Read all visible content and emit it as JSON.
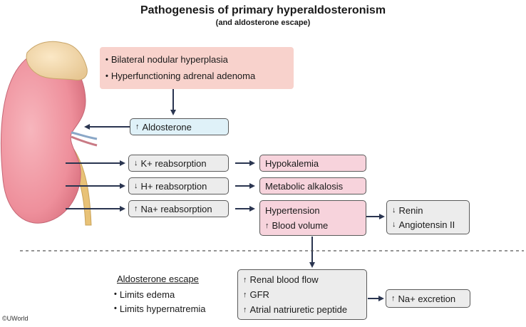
{
  "title": "Pathogenesis of primary hyperaldosteronism",
  "subtitle": "(and aldosterone escape)",
  "cause_box": {
    "items": [
      "Bilateral nodular hyperplasia",
      "Hyperfunctioning adrenal adenoma"
    ],
    "bullet": "•"
  },
  "aldosterone_box": {
    "arrow": "↑",
    "label": "Aldosterone"
  },
  "reabsorption": [
    {
      "arrow": "↓",
      "label": "K+ reabsorption"
    },
    {
      "arrow": "↓",
      "label": "H+ reabsorption"
    },
    {
      "arrow": "↑",
      "label": "Na+ reabsorption"
    }
  ],
  "effects": [
    {
      "label": "Hypokalemia"
    },
    {
      "label": "Metabolic alkalosis"
    }
  ],
  "hypertension_box": {
    "line1": "Hypertension",
    "line2_arrow": "↑",
    "line2": "Blood volume"
  },
  "renin_box": [
    {
      "arrow": "↓",
      "label": "Renin"
    },
    {
      "arrow": "↓",
      "label": "Angiotensin II"
    }
  ],
  "escape": {
    "heading": "Aldosterone escape",
    "items": [
      "Limits edema",
      "Limits hypernatremia"
    ],
    "bullet": "•"
  },
  "renal_box": [
    {
      "arrow": "↑",
      "label": "Renal blood flow"
    },
    {
      "arrow": "↑",
      "label": "GFR"
    },
    {
      "arrow": "↑",
      "label": "Atrial natriuretic peptide"
    }
  ],
  "excretion_box": {
    "arrow": "↑",
    "label": "Na+ excretion"
  },
  "copyright": "©UWorld",
  "colors": {
    "pink_box": "#f7d3dc",
    "gray_box": "#ececec",
    "blue_box": "#dff1f8",
    "salmon_box": "#f8d2cc",
    "arrow": "#2a3550",
    "kidney": "#f09aa5"
  }
}
